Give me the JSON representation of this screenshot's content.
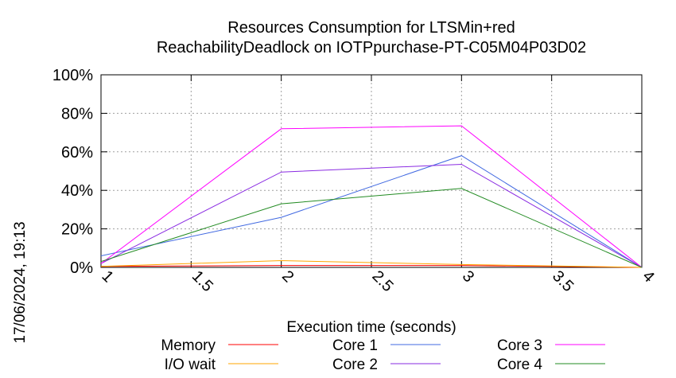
{
  "side_stamp": "17/06/2024, 19:13",
  "chart_data": {
    "type": "line",
    "title": "Resources Consumption for LTSMin+red",
    "subtitle": "ReachabilityDeadlock on IOTPpurchase-PT-C05M04P03D02",
    "xlabel": "Execution time (seconds)",
    "ylabel": "",
    "xlim": [
      1,
      4
    ],
    "ylim": [
      0,
      100
    ],
    "x_ticks": [
      "1",
      "1.5",
      "2",
      "2.5",
      "3",
      "3.5",
      "4"
    ],
    "y_ticks": [
      "0%",
      "20%",
      "40%",
      "60%",
      "80%",
      "100%"
    ],
    "grid": true,
    "legend_position": "bottom",
    "series": [
      {
        "name": "Memory",
        "color": "#ff0000",
        "x": [
          1,
          2,
          3,
          4
        ],
        "y": [
          0.5,
          1,
          1,
          0
        ]
      },
      {
        "name": "I/O wait",
        "color": "#ffa500",
        "x": [
          1,
          2,
          3,
          4
        ],
        "y": [
          0.5,
          3.5,
          1.5,
          0
        ]
      },
      {
        "name": "Core 1",
        "color": "#4169e1",
        "x": [
          1,
          2,
          3,
          4
        ],
        "y": [
          6,
          26,
          58,
          0
        ]
      },
      {
        "name": "Core 2",
        "color": "#8a2be2",
        "x": [
          1,
          2,
          3,
          4
        ],
        "y": [
          2,
          49.5,
          53.5,
          0
        ]
      },
      {
        "name": "Core 3",
        "color": "#ff00ff",
        "x": [
          1,
          2,
          3,
          4
        ],
        "y": [
          2,
          72,
          73.5,
          0
        ]
      },
      {
        "name": "Core 4",
        "color": "#228b22",
        "x": [
          1,
          2,
          3,
          4
        ],
        "y": [
          3,
          33,
          41,
          0
        ]
      }
    ]
  }
}
